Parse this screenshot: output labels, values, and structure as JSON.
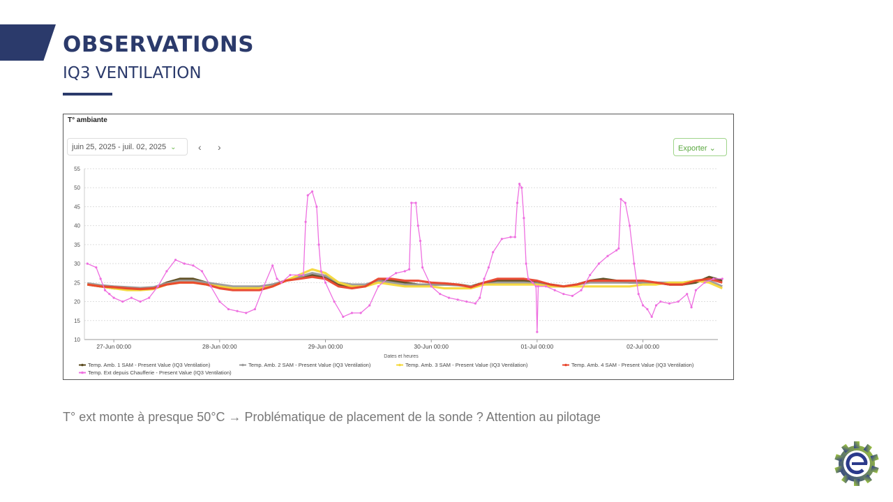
{
  "header": {
    "title": "OBSERVATIONS",
    "subtitle": "IQ3 VENTILATION",
    "accent_color": "#2b3a6b"
  },
  "widget": {
    "title": "T° ambiante",
    "date_range": "juin 25, 2025 - juil. 02, 2025",
    "prev_icon": "chevron-left-icon",
    "next_icon": "chevron-right-icon",
    "export_label": "Exporter"
  },
  "caption": "T° ext monte à presque 50°C → Problématique de placement de la sonde ? Attention au pilotage",
  "logo": {
    "icon": "gear-e-logo",
    "colors": [
      "#2b3a8b",
      "#9cc83a"
    ]
  },
  "chart_data": {
    "type": "line",
    "xlabel": "Dates et heures",
    "ylabel": "",
    "ylim": [
      10,
      55
    ],
    "yticks": [
      10,
      15,
      20,
      25,
      30,
      35,
      40,
      45,
      50,
      55
    ],
    "xlim": [
      "2025-06-26T17:20",
      "2025-07-02T17:00"
    ],
    "xticks": [
      {
        "t": "2025-06-27T00:00",
        "label": "27-Jun 00:00"
      },
      {
        "t": "2025-06-28T00:00",
        "label": "28-Jun 00:00"
      },
      {
        "t": "2025-06-29T00:00",
        "label": "29-Jun 00:00"
      },
      {
        "t": "2025-06-30T00:00",
        "label": "30-Jun 00:00"
      },
      {
        "t": "2025-07-01T00:00",
        "label": "01-Jul 00:00"
      },
      {
        "t": "2025-07-02T00:00",
        "label": "02-Jul 00:00"
      }
    ],
    "grid": "horizontal dashed",
    "legend_placement": "bottom",
    "x_start": "2025-06-26T18:00",
    "x_step_hours": 3,
    "series": [
      {
        "name": "Temp. Amb. 1 SAM - Present Value (IQ3 Ventilation)",
        "color": "#5a4a1e",
        "values": [
          24.5,
          24,
          23.5,
          23.3,
          23.2,
          23.5,
          25,
          26,
          26,
          25,
          24,
          23.5,
          23.5,
          23.8,
          24.5,
          25.5,
          26.5,
          27,
          26.5,
          24.5,
          24,
          24,
          25.5,
          25.5,
          25,
          24.5,
          24.5,
          24.5,
          24.5,
          24,
          25,
          25.5,
          25.5,
          25.5,
          25,
          24.5,
          24,
          24.5,
          25.5,
          26,
          25.5,
          25,
          25,
          25,
          24.5,
          24.5,
          25,
          26.5,
          25.5
        ]
      },
      {
        "name": "Temp. Amb. 2 SAM - Present Value (IQ3 Ventilation)",
        "color": "#9a9a9a",
        "values": [
          24.8,
          24.3,
          24,
          23.8,
          23.6,
          23.8,
          24.8,
          25.5,
          25.5,
          25,
          24.5,
          24,
          24,
          24,
          24.5,
          25.5,
          26.5,
          27.5,
          26.8,
          25,
          24.5,
          24.5,
          25.5,
          25,
          24.5,
          24.5,
          24.5,
          24.5,
          24.3,
          24,
          24.5,
          25,
          25,
          25,
          24.8,
          24,
          24,
          24.5,
          25,
          25,
          25,
          25,
          25,
          25,
          25,
          25,
          25.5,
          25.5,
          24
        ]
      },
      {
        "name": "Temp. Amb. 3 SAM - Present Value (IQ3 Ventilation)",
        "color": "#f5d83a",
        "values": [
          24.5,
          24,
          23.5,
          23,
          23,
          23.3,
          24.5,
          25,
          25,
          24.5,
          24,
          23.5,
          23.5,
          23.5,
          24,
          25.5,
          27,
          28.5,
          27.5,
          25,
          24,
          24,
          25,
          24.5,
          24,
          24,
          24,
          23.5,
          23.5,
          23.5,
          24.5,
          24.5,
          24.5,
          24.5,
          24.5,
          24,
          24,
          24,
          24,
          24,
          24,
          24,
          24.5,
          24.5,
          25,
          25,
          25.5,
          25,
          23.5
        ]
      },
      {
        "name": "Temp. Amb. 4 SAM - Present Value (IQ3 Ventilation)",
        "color": "#e8452c",
        "values": [
          24.5,
          24,
          23.8,
          23.5,
          23.3,
          23.5,
          24.5,
          25,
          25,
          24.5,
          23.5,
          23,
          23,
          23,
          24,
          25.5,
          26,
          26.5,
          26,
          24,
          23.5,
          24,
          26,
          26,
          25.5,
          25.5,
          25,
          24.8,
          24.5,
          23.8,
          25,
          26,
          26,
          26,
          25.5,
          24.5,
          24,
          24.5,
          25.5,
          25.5,
          25.5,
          25.5,
          25.5,
          25,
          24.5,
          24.5,
          25.5,
          26,
          25
        ]
      },
      {
        "name": "Temp. Ext depuis Chaufferie - Present Value (IQ3 Ventilation)",
        "color": "#ee6fe0",
        "markers": true,
        "points": [
          [
            "2025-06-26T18:00",
            30
          ],
          [
            "2025-06-26T20:00",
            29
          ],
          [
            "2025-06-26T21:00",
            26
          ],
          [
            "2025-06-26T22:00",
            23
          ],
          [
            "2025-06-26T23:00",
            22
          ],
          [
            "2025-06-27T00:00",
            21
          ],
          [
            "2025-06-27T02:00",
            20
          ],
          [
            "2025-06-27T04:00",
            21
          ],
          [
            "2025-06-27T06:00",
            20
          ],
          [
            "2025-06-27T08:00",
            21
          ],
          [
            "2025-06-27T10:00",
            24
          ],
          [
            "2025-06-27T12:00",
            28
          ],
          [
            "2025-06-27T14:00",
            31
          ],
          [
            "2025-06-27T16:00",
            30
          ],
          [
            "2025-06-27T18:00",
            29.5
          ],
          [
            "2025-06-27T20:00",
            28
          ],
          [
            "2025-06-27T22:00",
            24
          ],
          [
            "2025-06-28T00:00",
            20
          ],
          [
            "2025-06-28T02:00",
            18
          ],
          [
            "2025-06-28T04:00",
            17.5
          ],
          [
            "2025-06-28T06:00",
            17
          ],
          [
            "2025-06-28T08:00",
            18
          ],
          [
            "2025-06-28T10:00",
            24
          ],
          [
            "2025-06-28T12:00",
            29.5
          ],
          [
            "2025-06-28T13:00",
            26
          ],
          [
            "2025-06-28T14:00",
            25
          ],
          [
            "2025-06-28T16:00",
            27
          ],
          [
            "2025-06-28T18:00",
            27
          ],
          [
            "2025-06-28T19:00",
            27
          ],
          [
            "2025-06-28T19:30",
            41
          ],
          [
            "2025-06-28T20:00",
            48
          ],
          [
            "2025-06-28T21:00",
            49
          ],
          [
            "2025-06-28T22:00",
            45
          ],
          [
            "2025-06-28T22:30",
            35
          ],
          [
            "2025-06-28T23:00",
            28
          ],
          [
            "2025-06-29T00:00",
            25
          ],
          [
            "2025-06-29T02:00",
            20
          ],
          [
            "2025-06-29T04:00",
            16
          ],
          [
            "2025-06-29T06:00",
            17
          ],
          [
            "2025-06-29T08:00",
            17
          ],
          [
            "2025-06-29T10:00",
            19
          ],
          [
            "2025-06-29T12:00",
            24
          ],
          [
            "2025-06-29T14:00",
            26
          ],
          [
            "2025-06-29T16:00",
            27.5
          ],
          [
            "2025-06-29T18:00",
            28
          ],
          [
            "2025-06-29T19:00",
            28.5
          ],
          [
            "2025-06-29T19:30",
            46
          ],
          [
            "2025-06-29T20:30",
            46
          ],
          [
            "2025-06-29T21:00",
            40
          ],
          [
            "2025-06-29T21:30",
            36
          ],
          [
            "2025-06-29T22:00",
            29
          ],
          [
            "2025-06-30T00:00",
            24
          ],
          [
            "2025-06-30T02:00",
            22
          ],
          [
            "2025-06-30T04:00",
            21
          ],
          [
            "2025-06-30T06:00",
            20.5
          ],
          [
            "2025-06-30T08:00",
            20
          ],
          [
            "2025-06-30T10:00",
            19.5
          ],
          [
            "2025-06-30T11:00",
            21
          ],
          [
            "2025-06-30T12:00",
            26
          ],
          [
            "2025-06-30T13:00",
            29
          ],
          [
            "2025-06-30T14:00",
            33
          ],
          [
            "2025-06-30T16:00",
            36.5
          ],
          [
            "2025-06-30T18:00",
            37
          ],
          [
            "2025-06-30T19:00",
            37
          ],
          [
            "2025-06-30T19:30",
            46
          ],
          [
            "2025-06-30T20:00",
            51
          ],
          [
            "2025-06-30T20:30",
            50
          ],
          [
            "2025-06-30T21:00",
            42
          ],
          [
            "2025-06-30T21:30",
            30
          ],
          [
            "2025-06-30T22:00",
            26
          ],
          [
            "2025-06-30T23:00",
            25
          ],
          [
            "2025-06-30T23:45",
            24
          ],
          [
            "2025-07-01T00:00",
            12
          ],
          [
            "2025-07-01T00:15",
            24
          ],
          [
            "2025-07-01T02:00",
            24
          ],
          [
            "2025-07-01T04:00",
            23
          ],
          [
            "2025-07-01T06:00",
            22
          ],
          [
            "2025-07-01T08:00",
            21.5
          ],
          [
            "2025-07-01T10:00",
            23
          ],
          [
            "2025-07-01T12:00",
            27
          ],
          [
            "2025-07-01T14:00",
            30
          ],
          [
            "2025-07-01T16:00",
            32
          ],
          [
            "2025-07-01T18:00",
            33.5
          ],
          [
            "2025-07-01T18:30",
            34
          ],
          [
            "2025-07-01T19:00",
            47
          ],
          [
            "2025-07-01T20:00",
            46
          ],
          [
            "2025-07-01T21:00",
            40
          ],
          [
            "2025-07-01T22:00",
            30
          ],
          [
            "2025-07-01T23:00",
            22
          ],
          [
            "2025-07-02T00:00",
            19
          ],
          [
            "2025-07-02T01:00",
            18
          ],
          [
            "2025-07-02T02:00",
            16
          ],
          [
            "2025-07-02T03:00",
            19
          ],
          [
            "2025-07-02T04:00",
            20
          ],
          [
            "2025-07-02T06:00",
            19.5
          ],
          [
            "2025-07-02T08:00",
            20
          ],
          [
            "2025-07-02T10:00",
            22
          ],
          [
            "2025-07-02T11:00",
            18.5
          ],
          [
            "2025-07-02T12:00",
            23
          ],
          [
            "2025-07-02T14:00",
            25
          ],
          [
            "2025-07-02T16:00",
            26
          ],
          [
            "2025-07-02T18:00",
            26
          ]
        ]
      }
    ]
  }
}
